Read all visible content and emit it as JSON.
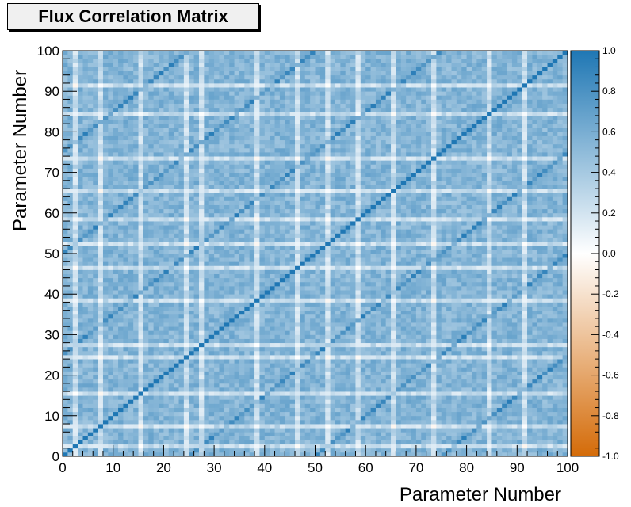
{
  "chart_data": {
    "type": "heatmap",
    "title": "Flux Correlation Matrix",
    "xlabel": "Parameter Number",
    "ylabel": "Parameter Number",
    "n_bins": 100,
    "xlim": [
      0,
      100
    ],
    "ylim": [
      0,
      100
    ],
    "x_ticks": [
      "0",
      "10",
      "20",
      "30",
      "40",
      "50",
      "60",
      "70",
      "80",
      "90",
      "100"
    ],
    "y_ticks": [
      "0",
      "10",
      "20",
      "30",
      "40",
      "50",
      "60",
      "70",
      "80",
      "90",
      "100"
    ],
    "colorbar": {
      "range": [
        -1.0,
        1.0
      ],
      "ticks": [
        "1.0",
        "0.8",
        "0.6",
        "0.4",
        "0.2",
        "0.0",
        "-0.2",
        "-0.4",
        "-0.6",
        "-0.8",
        "-1.0"
      ],
      "positive_color": "#1f77b4",
      "zero_color": "#ffffff",
      "negative_color": "#d46b08"
    },
    "diagonal_value": 1.0,
    "typical_offdiagonal_value": 0.55,
    "low_correlation_parameters": [
      2,
      7,
      15,
      24,
      27,
      38,
      46,
      52,
      58,
      65,
      73,
      84,
      91
    ],
    "secondary_diagonal_offsets": [
      25,
      50,
      75
    ],
    "colors": {
      "diagonal": "#0b6aad",
      "block": "#3d8fca",
      "pale_band": "#b8d7ee"
    }
  }
}
